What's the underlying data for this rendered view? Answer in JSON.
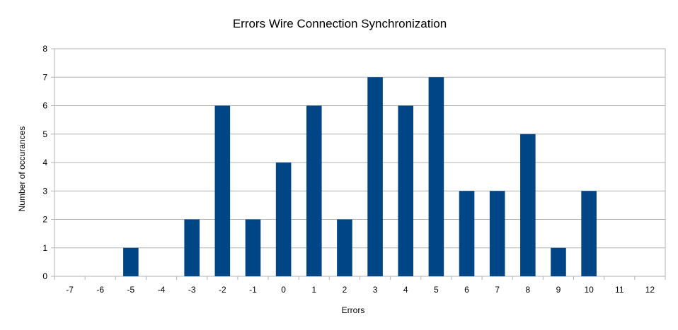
{
  "chart_data": {
    "type": "bar",
    "title": "Errors Wire Connection Synchronization",
    "xlabel": "Errors",
    "ylabel": "Number of occurances",
    "categories": [
      "-7",
      "-6",
      "-5",
      "-4",
      "-3",
      "-2",
      "-1",
      "0",
      "1",
      "2",
      "3",
      "4",
      "5",
      "6",
      "7",
      "8",
      "9",
      "10",
      "11",
      "12"
    ],
    "values": [
      0,
      0,
      1,
      0,
      2,
      6,
      2,
      4,
      6,
      2,
      7,
      6,
      7,
      3,
      3,
      5,
      1,
      3,
      0,
      0
    ],
    "ylim": [
      0,
      8
    ],
    "yticks": [
      0,
      1,
      2,
      3,
      4,
      5,
      6,
      7,
      8
    ],
    "grid": true,
    "legend": "none",
    "bar_color": "#004586"
  }
}
